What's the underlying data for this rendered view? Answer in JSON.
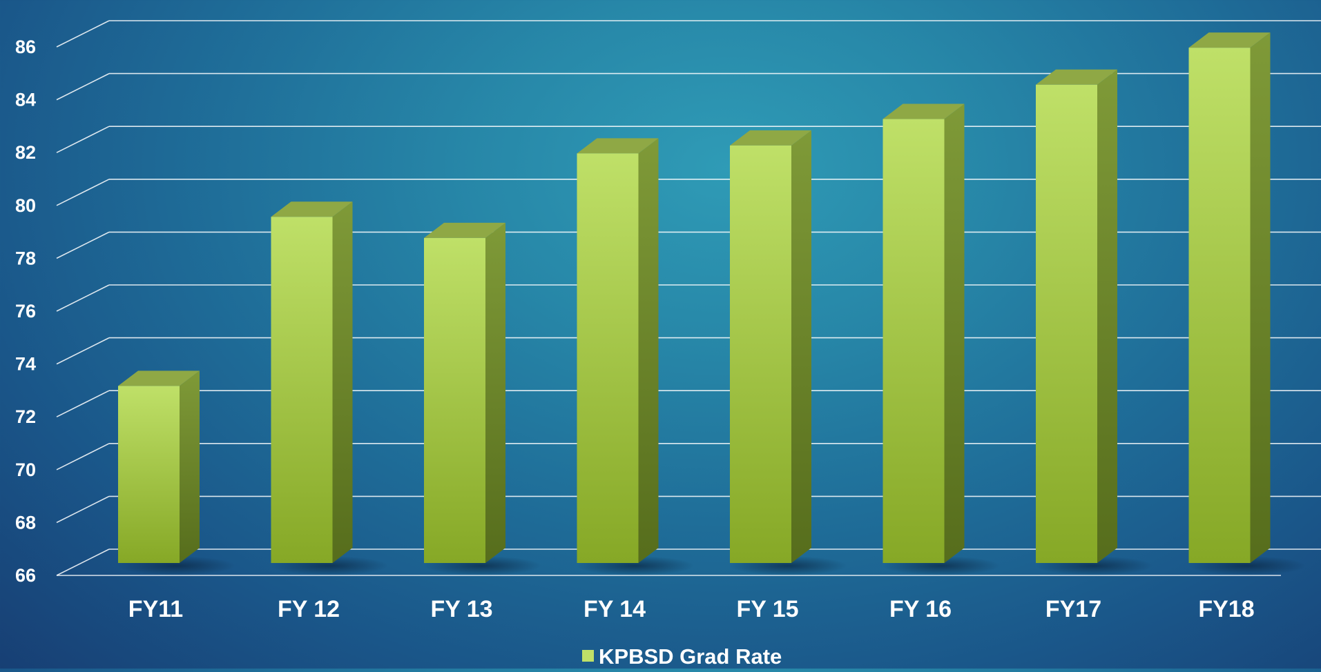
{
  "chart_data": {
    "type": "bar",
    "categories": [
      "FY11",
      "FY 12",
      "FY 13",
      "FY 14",
      "FY 15",
      "FY 16",
      "FY17",
      "FY18"
    ],
    "series": [
      {
        "name": "KPBSD Grad Rate",
        "values": [
          72.7,
          79.1,
          78.3,
          81.5,
          81.8,
          82.8,
          84.1,
          85.5
        ]
      }
    ],
    "ylim": [
      66,
      86
    ],
    "y_ticks": [
      66,
      68,
      70,
      72,
      74,
      76,
      78,
      80,
      82,
      84,
      86
    ],
    "grid": true,
    "legend_position": "bottom-center",
    "colors": {
      "bar_front_light": "#bfe068",
      "bar_front_dark": "#86a826",
      "bar_side": "#6f8a2a",
      "bar_top": "#8fa845",
      "grid": "#ffffff",
      "text": "#ffffff"
    }
  }
}
